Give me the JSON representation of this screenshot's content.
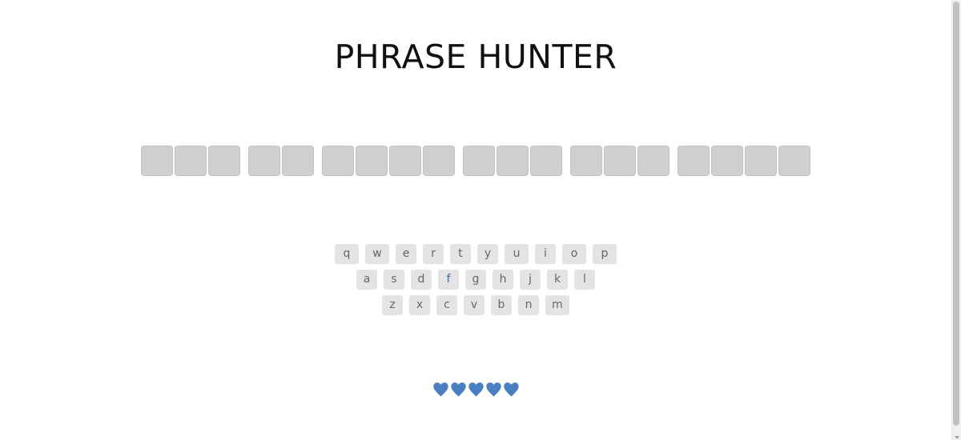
{
  "title": "PHRASE HUNTER",
  "phrase": {
    "words": [
      {
        "letters": 3
      },
      {
        "letters": 2
      },
      {
        "letters": 4
      },
      {
        "letters": 3
      },
      {
        "letters": 3
      },
      {
        "letters": 4
      }
    ]
  },
  "keyboard": {
    "rows": [
      [
        "q",
        "w",
        "e",
        "r",
        "t",
        "y",
        "u",
        "i",
        "o",
        "p"
      ],
      [
        "a",
        "s",
        "d",
        "f",
        "g",
        "h",
        "j",
        "k",
        "l"
      ],
      [
        "z",
        "x",
        "c",
        "v",
        "b",
        "n",
        "m"
      ]
    ],
    "focused_key": "f"
  },
  "lives": {
    "remaining": 5,
    "total": 5,
    "icon": "heart-icon",
    "color": "#4a7fc1"
  },
  "colors": {
    "tile": "#d0d0d0",
    "key": "#e4e4e4",
    "key_text": "#666666",
    "focused_key_text": "#3a6fb0"
  }
}
